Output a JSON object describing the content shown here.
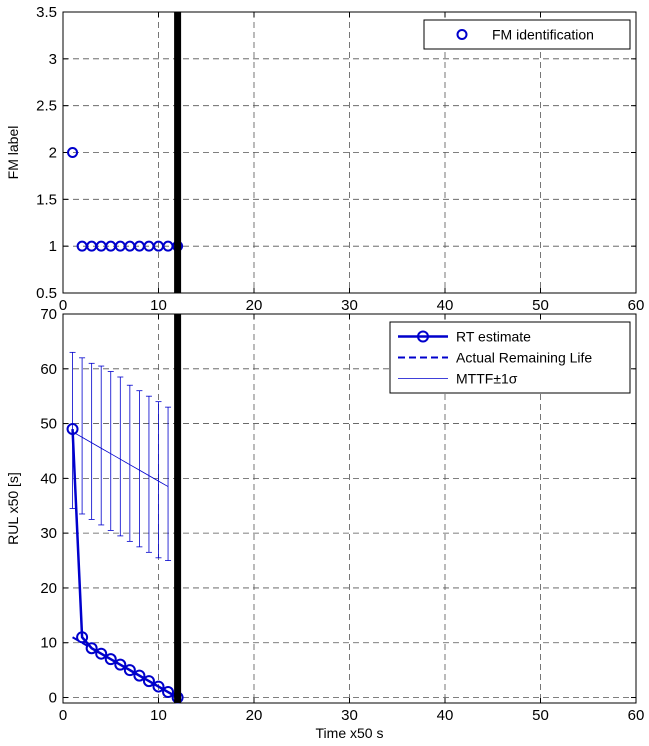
{
  "chart_data": [
    {
      "type": "scatter",
      "xlabel": "",
      "ylabel": "FM label",
      "xlim": [
        0,
        60
      ],
      "ylim": [
        0.5,
        3.5
      ],
      "x_ticks": [
        "0",
        "10",
        "20",
        "30",
        "40",
        "50",
        "60"
      ],
      "y_ticks": [
        "0.5",
        "1",
        "1.5",
        "2",
        "2.5",
        "3",
        "3.5"
      ],
      "grid": true,
      "legend_position": "top-right",
      "current_time_marker": 12,
      "series": [
        {
          "name": "FM identification",
          "x": [
            1,
            2,
            3,
            4,
            5,
            6,
            7,
            8,
            9,
            10,
            11,
            12
          ],
          "y": [
            2,
            1,
            1,
            1,
            1,
            1,
            1,
            1,
            1,
            1,
            1,
            1
          ]
        }
      ]
    },
    {
      "type": "line",
      "xlabel": "Time x50 s",
      "ylabel": "RUL x50 [s]",
      "xlim": [
        0,
        60
      ],
      "ylim": [
        -1,
        70
      ],
      "x_ticks": [
        "0",
        "10",
        "20",
        "30",
        "40",
        "50",
        "60"
      ],
      "y_ticks": [
        "0",
        "10",
        "20",
        "30",
        "40",
        "50",
        "60",
        "70"
      ],
      "grid": true,
      "legend_position": "top-right",
      "current_time_marker": 12,
      "series": [
        {
          "name": "RT estimate",
          "x": [
            1,
            2,
            3,
            4,
            5,
            6,
            7,
            8,
            9,
            10,
            11,
            12
          ],
          "y": [
            49,
            11,
            9,
            8,
            7,
            6,
            5,
            4,
            3,
            2,
            1,
            0
          ]
        },
        {
          "name": "Actual Remaining Life",
          "x": [
            1,
            12
          ],
          "y": [
            11,
            0
          ]
        },
        {
          "name": "MTTF±1σ",
          "x": [
            1,
            2,
            3,
            4,
            5,
            6,
            7,
            8,
            9,
            10,
            11
          ],
          "y": [
            48.5,
            47.5,
            46.5,
            45.5,
            44.5,
            43.5,
            42.5,
            41.5,
            40.5,
            39.5,
            38.5
          ],
          "lower": [
            34.5,
            33.5,
            32.5,
            31.5,
            30.5,
            29.5,
            28.5,
            27.5,
            26.5,
            25.5,
            25
          ],
          "upper": [
            63,
            62,
            61,
            60.5,
            59.5,
            58.5,
            57,
            56,
            55,
            54,
            53
          ]
        }
      ]
    }
  ]
}
